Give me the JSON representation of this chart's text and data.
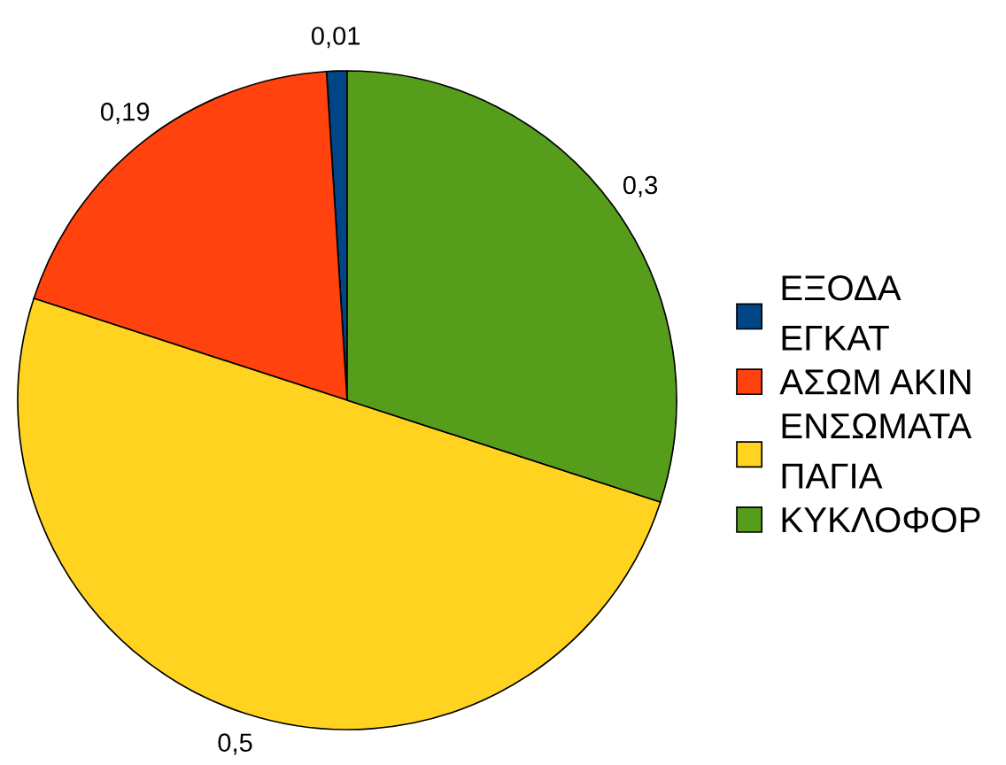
{
  "chart_data": {
    "type": "pie",
    "categories": [
      "ΕΞΟΔΑ\nΕΓΚΑΤ",
      "ΑΣΩΜ ΑΚΙΝ",
      "ΕΝΣΩΜΑΤΑ\nΠΑΓΙΑ",
      "ΚΥΚΛΟΦΟΡ"
    ],
    "values": [
      0.01,
      0.19,
      0.5,
      0.3
    ],
    "colors": [
      "#004586",
      "#ff420e",
      "#ffd320",
      "#579d1c"
    ],
    "value_labels": [
      "0,01",
      "0,19",
      "0,5",
      "0,3"
    ],
    "legend": "right"
  }
}
